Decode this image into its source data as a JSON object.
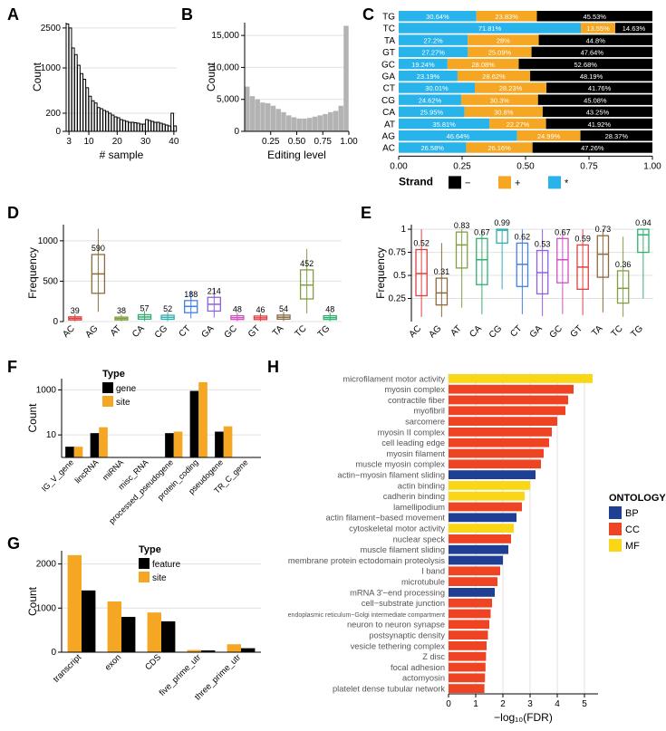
{
  "colors": {
    "black": "#000000",
    "orange": "#f5a623",
    "orange2": "#f29324",
    "cyan": "#29b3eb",
    "gray": "#b3b3b3",
    "grid": "#e0e0e0",
    "white": "#ffffff",
    "ont_bp": "#1f3f94",
    "ont_cc": "#ee4423",
    "ont_mf": "#f9d616",
    "box_palette": [
      "#e04040",
      "#8b6b3e",
      "#80a040",
      "#30b070",
      "#30b0b0",
      "#4080f0",
      "#9060e0",
      "#d050c0"
    ]
  },
  "panelA": {
    "label": "A",
    "xlabel": "# sample",
    "ylabel": "Count",
    "xlim": [
      2,
      41
    ],
    "ylim": [
      0,
      2700
    ],
    "xticks": [
      3,
      10,
      20,
      30,
      40
    ],
    "yticks": [
      0,
      200,
      1000,
      2500
    ],
    "bars": [
      2650,
      2500,
      1750,
      1500,
      1100,
      900,
      800,
      650,
      500,
      420,
      380,
      300,
      280,
      250,
      230,
      200,
      180,
      160,
      150,
      130,
      120,
      110,
      100,
      100,
      95,
      90,
      80,
      80,
      130,
      120,
      110,
      100,
      100,
      90,
      80,
      70,
      60,
      200,
      60
    ]
  },
  "panelB": {
    "label": "B",
    "xlabel": "Editing level",
    "ylabel": "Count",
    "xlim": [
      0,
      1.05
    ],
    "ylim": [
      0,
      17000
    ],
    "xticks": [
      0.25,
      0.5,
      0.75,
      1.0
    ],
    "yticks": [
      0,
      5000,
      10000,
      15000
    ],
    "bars": [
      7000,
      5500,
      5000,
      4500,
      4400,
      4000,
      3500,
      3000,
      2500,
      2200,
      2000,
      2000,
      2100,
      2300,
      2500,
      2700,
      3000,
      3200,
      4000,
      16500
    ]
  },
  "panelC": {
    "label": "C",
    "ylabels": [
      "TG",
      "TC",
      "TA",
      "GT",
      "GC",
      "GA",
      "CT",
      "CG",
      "CA",
      "AT",
      "AG",
      "AC"
    ],
    "xticks": [
      0.0,
      0.25,
      0.5,
      0.75,
      1.0
    ],
    "legend_title": "Strand",
    "legend": [
      [
        "−",
        "#000000"
      ],
      [
        "+",
        "#f5a623"
      ],
      [
        "*",
        "#29b3eb"
      ]
    ],
    "rows": [
      {
        "seg": [
          {
            "c": "#29b3eb",
            "w": 0.3064,
            "t": "30.64%"
          },
          {
            "c": "#f5a623",
            "w": 0.2383,
            "t": "23.83%"
          },
          {
            "c": "#000000",
            "w": 0.4553,
            "t": "45.53%"
          }
        ]
      },
      {
        "seg": [
          {
            "c": "#29b3eb",
            "w": 0.7181,
            "t": "71.81%"
          },
          {
            "c": "#f5a623",
            "w": 0.1355,
            "t": "13.55%"
          },
          {
            "c": "#000000",
            "w": 0.1463,
            "t": "14.63%"
          }
        ]
      },
      {
        "seg": [
          {
            "c": "#29b3eb",
            "w": 0.272,
            "t": "27.2%"
          },
          {
            "c": "#f5a623",
            "w": 0.28,
            "t": "28%"
          },
          {
            "c": "#000000",
            "w": 0.448,
            "t": "44.8%"
          }
        ]
      },
      {
        "seg": [
          {
            "c": "#29b3eb",
            "w": 0.2727,
            "t": "27.27%"
          },
          {
            "c": "#f5a623",
            "w": 0.2509,
            "t": "25.09%"
          },
          {
            "c": "#000000",
            "w": 0.4764,
            "t": "47.64%"
          }
        ]
      },
      {
        "seg": [
          {
            "c": "#29b3eb",
            "w": 0.1924,
            "t": "19.24%"
          },
          {
            "c": "#f5a623",
            "w": 0.2808,
            "t": "28.08%"
          },
          {
            "c": "#000000",
            "w": 0.5268,
            "t": "52.68%"
          }
        ]
      },
      {
        "seg": [
          {
            "c": "#29b3eb",
            "w": 0.2319,
            "t": "23.19%"
          },
          {
            "c": "#f5a623",
            "w": 0.2862,
            "t": "28.62%"
          },
          {
            "c": "#000000",
            "w": 0.4819,
            "t": "48.19%"
          }
        ]
      },
      {
        "seg": [
          {
            "c": "#29b3eb",
            "w": 0.3001,
            "t": "30.01%"
          },
          {
            "c": "#f5a623",
            "w": 0.2823,
            "t": "28.23%"
          },
          {
            "c": "#000000",
            "w": 0.4176,
            "t": "41.76%"
          }
        ]
      },
      {
        "seg": [
          {
            "c": "#29b3eb",
            "w": 0.2462,
            "t": "24.62%"
          },
          {
            "c": "#f5a623",
            "w": 0.303,
            "t": "30.3%"
          },
          {
            "c": "#000000",
            "w": 0.4508,
            "t": "45.08%"
          }
        ]
      },
      {
        "seg": [
          {
            "c": "#29b3eb",
            "w": 0.2595,
            "t": "25.95%"
          },
          {
            "c": "#f5a623",
            "w": 0.308,
            "t": "30.8%"
          },
          {
            "c": "#000000",
            "w": 0.4325,
            "t": "43.25%"
          }
        ]
      },
      {
        "seg": [
          {
            "c": "#29b3eb",
            "w": 0.3581,
            "t": "35.81%"
          },
          {
            "c": "#f5a623",
            "w": 0.2227,
            "t": "22.27%"
          },
          {
            "c": "#000000",
            "w": 0.4192,
            "t": "41.92%"
          }
        ]
      },
      {
        "seg": [
          {
            "c": "#29b3eb",
            "w": 0.4664,
            "t": "46.64%"
          },
          {
            "c": "#f5a623",
            "w": 0.2499,
            "t": "24.99%"
          },
          {
            "c": "#000000",
            "w": 0.2837,
            "t": "28.37%"
          }
        ]
      },
      {
        "seg": [
          {
            "c": "#29b3eb",
            "w": 0.2658,
            "t": "26.58%"
          },
          {
            "c": "#f5a623",
            "w": 0.2616,
            "t": "26.16%"
          },
          {
            "c": "#000000",
            "w": 0.4726,
            "t": "47.26%"
          }
        ]
      }
    ]
  },
  "panelD": {
    "label": "D",
    "ylabel": "Frequency",
    "yticks": [
      0,
      500,
      1000
    ],
    "cats": [
      "AC",
      "AG",
      "AT",
      "CA",
      "CG",
      "CT",
      "GA",
      "GC",
      "GT",
      "TA",
      "TC",
      "TG"
    ],
    "labels": [
      "39",
      "590",
      "38",
      "57",
      "52",
      "188",
      "214",
      "48",
      "46",
      "54",
      "452",
      "48"
    ],
    "boxes": [
      {
        "q1": 20,
        "med": 39,
        "q3": 58,
        "lo": 5,
        "hi": 90
      },
      {
        "q1": 350,
        "med": 590,
        "q3": 830,
        "lo": 120,
        "hi": 1150
      },
      {
        "q1": 20,
        "med": 38,
        "q3": 55,
        "lo": 5,
        "hi": 85
      },
      {
        "q1": 30,
        "med": 57,
        "q3": 85,
        "lo": 8,
        "hi": 130
      },
      {
        "q1": 28,
        "med": 52,
        "q3": 78,
        "lo": 7,
        "hi": 120
      },
      {
        "q1": 110,
        "med": 188,
        "q3": 260,
        "lo": 40,
        "hi": 380
      },
      {
        "q1": 130,
        "med": 214,
        "q3": 300,
        "lo": 50,
        "hi": 420
      },
      {
        "q1": 26,
        "med": 48,
        "q3": 72,
        "lo": 6,
        "hi": 110
      },
      {
        "q1": 25,
        "med": 46,
        "q3": 68,
        "lo": 6,
        "hi": 100
      },
      {
        "q1": 30,
        "med": 54,
        "q3": 80,
        "lo": 8,
        "hi": 120
      },
      {
        "q1": 280,
        "med": 452,
        "q3": 640,
        "lo": 100,
        "hi": 900
      },
      {
        "q1": 26,
        "med": 48,
        "q3": 72,
        "lo": 6,
        "hi": 110
      }
    ]
  },
  "panelE": {
    "label": "E",
    "ylabel": "Frequency",
    "yticks": [
      0.25,
      0.5,
      0.75,
      1.0
    ],
    "cats": [
      "AC",
      "AG",
      "AT",
      "CA",
      "CG",
      "CT",
      "GA",
      "GC",
      "GT",
      "TA",
      "TC",
      "TG"
    ],
    "labels": [
      "0.52",
      "0.31",
      "0.83",
      "0.67",
      "0.99",
      "0.62",
      "0.53",
      "0.67",
      "0.59",
      "0.73",
      "0.36",
      "0.94"
    ],
    "boxes": [
      {
        "q1": 0.28,
        "med": 0.52,
        "q3": 0.78,
        "lo": 0.05,
        "hi": 1.0
      },
      {
        "q1": 0.18,
        "med": 0.31,
        "q3": 0.47,
        "lo": 0.05,
        "hi": 0.85
      },
      {
        "q1": 0.58,
        "med": 0.83,
        "q3": 0.97,
        "lo": 0.15,
        "hi": 1.0
      },
      {
        "q1": 0.4,
        "med": 0.67,
        "q3": 0.9,
        "lo": 0.08,
        "hi": 1.0
      },
      {
        "q1": 0.85,
        "med": 0.99,
        "q3": 1.0,
        "lo": 0.35,
        "hi": 1.0
      },
      {
        "q1": 0.38,
        "med": 0.62,
        "q3": 0.85,
        "lo": 0.08,
        "hi": 1.0
      },
      {
        "q1": 0.3,
        "med": 0.53,
        "q3": 0.77,
        "lo": 0.06,
        "hi": 1.0
      },
      {
        "q1": 0.42,
        "med": 0.67,
        "q3": 0.9,
        "lo": 0.08,
        "hi": 1.0
      },
      {
        "q1": 0.35,
        "med": 0.59,
        "q3": 0.83,
        "lo": 0.07,
        "hi": 1.0
      },
      {
        "q1": 0.48,
        "med": 0.73,
        "q3": 0.93,
        "lo": 0.1,
        "hi": 1.0
      },
      {
        "q1": 0.2,
        "med": 0.36,
        "q3": 0.55,
        "lo": 0.05,
        "hi": 0.92
      },
      {
        "q1": 0.75,
        "med": 0.94,
        "q3": 1.0,
        "lo": 0.25,
        "hi": 1.0
      }
    ]
  },
  "panelF": {
    "label": "F",
    "ylabel": "Count",
    "legend_title": "Type",
    "legend": [
      [
        "gene",
        "#000000"
      ],
      [
        "site",
        "#f5a623"
      ]
    ],
    "yticks": [
      10,
      1000
    ],
    "ytick_labels": [
      "10",
      "1000"
    ],
    "cats": [
      "IG_V_gene",
      "lincRNA",
      "miRNA",
      "misc_RNA",
      "processed_pseudogene",
      "protein_coding",
      "pseudogene",
      "TR_C_gene"
    ],
    "gene": [
      3,
      12,
      1,
      1,
      12,
      900,
      14,
      1
    ],
    "site": [
      3,
      22,
      1,
      1,
      14,
      2200,
      24,
      1
    ]
  },
  "panelG": {
    "label": "G",
    "ylabel": "Count",
    "legend_title": "Type",
    "legend": [
      [
        "feature",
        "#000000"
      ],
      [
        "site",
        "#f5a623"
      ]
    ],
    "yticks": [
      0,
      1000,
      2000
    ],
    "cats": [
      "transcript",
      "exon",
      "CDS",
      "five_prime_utr",
      "three_prime_utr"
    ],
    "feature": [
      1400,
      800,
      700,
      40,
      90
    ],
    "site": [
      2200,
      1150,
      900,
      50,
      180
    ]
  },
  "panelH": {
    "label": "H",
    "xlabel": "−log₁₀(FDR)",
    "xticks": [
      0,
      1,
      2,
      3,
      4,
      5
    ],
    "legend_title": "ONTOLOGY",
    "legend": [
      [
        "BP",
        "#1f3f94"
      ],
      [
        "CC",
        "#ee4423"
      ],
      [
        "MF",
        "#f9d616"
      ]
    ],
    "rows": [
      {
        "t": "microfilament motor activity",
        "v": 5.3,
        "c": "#f9d616"
      },
      {
        "t": "myosin complex",
        "v": 4.6,
        "c": "#ee4423"
      },
      {
        "t": "contractile fiber",
        "v": 4.4,
        "c": "#ee4423"
      },
      {
        "t": "myofibril",
        "v": 4.3,
        "c": "#ee4423"
      },
      {
        "t": "sarcomere",
        "v": 4.0,
        "c": "#ee4423"
      },
      {
        "t": "myosin II complex",
        "v": 3.8,
        "c": "#ee4423"
      },
      {
        "t": "cell leading edge",
        "v": 3.7,
        "c": "#ee4423"
      },
      {
        "t": "myosin filament",
        "v": 3.5,
        "c": "#ee4423"
      },
      {
        "t": "muscle myosin complex",
        "v": 3.4,
        "c": "#ee4423"
      },
      {
        "t": "actin−myosin filament sliding",
        "v": 3.2,
        "c": "#1f3f94"
      },
      {
        "t": "actin binding",
        "v": 3.0,
        "c": "#f9d616"
      },
      {
        "t": "cadherin binding",
        "v": 2.8,
        "c": "#f9d616"
      },
      {
        "t": "lamellipodium",
        "v": 2.7,
        "c": "#ee4423"
      },
      {
        "t": "actin filament−based movement",
        "v": 2.5,
        "c": "#1f3f94"
      },
      {
        "t": "cytoskeletal motor activity",
        "v": 2.4,
        "c": "#f9d616"
      },
      {
        "t": "nuclear speck",
        "v": 2.3,
        "c": "#ee4423"
      },
      {
        "t": "muscle filament sliding",
        "v": 2.2,
        "c": "#1f3f94"
      },
      {
        "t": "membrane protein ectodomain proteolysis",
        "v": 2.0,
        "c": "#1f3f94"
      },
      {
        "t": "I band",
        "v": 1.9,
        "c": "#ee4423"
      },
      {
        "t": "microtubule",
        "v": 1.8,
        "c": "#ee4423"
      },
      {
        "t": "mRNA 3'−end processing",
        "v": 1.7,
        "c": "#1f3f94"
      },
      {
        "t": "cell−substrate junction",
        "v": 1.6,
        "c": "#ee4423"
      },
      {
        "t": "endoplasmic reticulum−Golgi intermediate compartment",
        "v": 1.55,
        "c": "#ee4423",
        "small": true
      },
      {
        "t": "neuron to neuron synapse",
        "v": 1.5,
        "c": "#ee4423"
      },
      {
        "t": "postsynaptic density",
        "v": 1.45,
        "c": "#ee4423"
      },
      {
        "t": "vesicle tethering complex",
        "v": 1.4,
        "c": "#ee4423"
      },
      {
        "t": "Z disc",
        "v": 1.38,
        "c": "#ee4423"
      },
      {
        "t": "focal adhesion",
        "v": 1.36,
        "c": "#ee4423"
      },
      {
        "t": "actomyosin",
        "v": 1.34,
        "c": "#ee4423"
      },
      {
        "t": "platelet dense tubular network",
        "v": 1.32,
        "c": "#ee4423"
      }
    ]
  }
}
